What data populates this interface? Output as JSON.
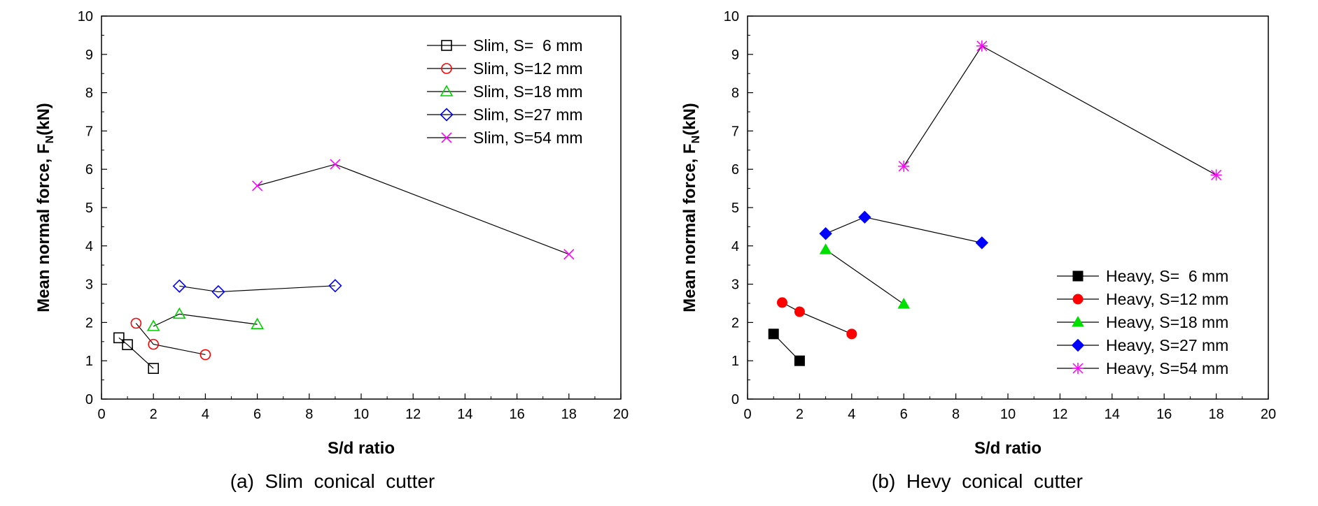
{
  "chart_data": [
    {
      "type": "scatter",
      "panel": "a",
      "caption": "(a) Slim conical cutter",
      "xlabel": "S/d ratio",
      "ylabel": "Mean normal force, F",
      "ylabel_sub": "N",
      "ylabel_unit": "(kN)",
      "xlim": [
        0,
        20
      ],
      "ylim": [
        0,
        10
      ],
      "xticks": [
        0,
        2,
        4,
        6,
        8,
        10,
        12,
        14,
        16,
        18,
        20
      ],
      "yticks": [
        0,
        1,
        2,
        3,
        4,
        5,
        6,
        7,
        8,
        9,
        10
      ],
      "grid": false,
      "legend_position": "top-right",
      "series": [
        {
          "name": "Slim, S=  6 mm",
          "marker": "open-square",
          "color": "#000000",
          "x": [
            0.67,
            1,
            2
          ],
          "y": [
            1.6,
            1.42,
            0.8
          ]
        },
        {
          "name": "Slim, S=12 mm",
          "marker": "open-circle",
          "color": "#ff0000",
          "x": [
            1.33,
            2,
            4
          ],
          "y": [
            1.98,
            1.43,
            1.16
          ]
        },
        {
          "name": "Slim, S=18 mm",
          "marker": "open-triangle",
          "color": "#00d000",
          "x": [
            2,
            3,
            6
          ],
          "y": [
            1.9,
            2.22,
            1.95
          ]
        },
        {
          "name": "Slim, S=27 mm",
          "marker": "open-diamond",
          "color": "#0000ff",
          "x": [
            3,
            4.5,
            9
          ],
          "y": [
            2.95,
            2.8,
            2.96
          ]
        },
        {
          "name": "Slim, S=54 mm",
          "marker": "x",
          "color": "#ff00ff",
          "x": [
            6,
            9,
            18
          ],
          "y": [
            5.57,
            6.13,
            3.78
          ]
        }
      ]
    },
    {
      "type": "scatter",
      "panel": "b",
      "caption": "(b) Hevy conical cutter",
      "xlabel": "S/d ratio",
      "ylabel": "Mean normal force, F",
      "ylabel_sub": "N",
      "ylabel_unit": "(kN)",
      "xlim": [
        0,
        20
      ],
      "ylim": [
        0,
        10
      ],
      "xticks": [
        0,
        2,
        4,
        6,
        8,
        10,
        12,
        14,
        16,
        18,
        20
      ],
      "yticks": [
        0,
        1,
        2,
        3,
        4,
        5,
        6,
        7,
        8,
        9,
        10
      ],
      "grid": false,
      "legend_position": "bottom-right",
      "series": [
        {
          "name": "Heavy, S=  6 mm",
          "marker": "filled-square",
          "color": "#000000",
          "x": [
            1,
            2
          ],
          "y": [
            1.7,
            1.0
          ]
        },
        {
          "name": "Heavy, S=12 mm",
          "marker": "filled-circle",
          "color": "#ff0000",
          "x": [
            1.33,
            2,
            4
          ],
          "y": [
            2.52,
            2.28,
            1.7
          ]
        },
        {
          "name": "Heavy, S=18 mm",
          "marker": "filled-triangle",
          "color": "#00e000",
          "x": [
            3,
            6
          ],
          "y": [
            3.9,
            2.48
          ]
        },
        {
          "name": "Heavy, S=27 mm",
          "marker": "filled-diamond",
          "color": "#0000ff",
          "x": [
            3,
            4.5,
            9
          ],
          "y": [
            4.32,
            4.75,
            4.08
          ]
        },
        {
          "name": "Heavy, S=54 mm",
          "marker": "asterisk",
          "color": "#ff00ff",
          "x": [
            6,
            9,
            18
          ],
          "y": [
            6.08,
            9.22,
            5.85
          ]
        }
      ]
    }
  ]
}
